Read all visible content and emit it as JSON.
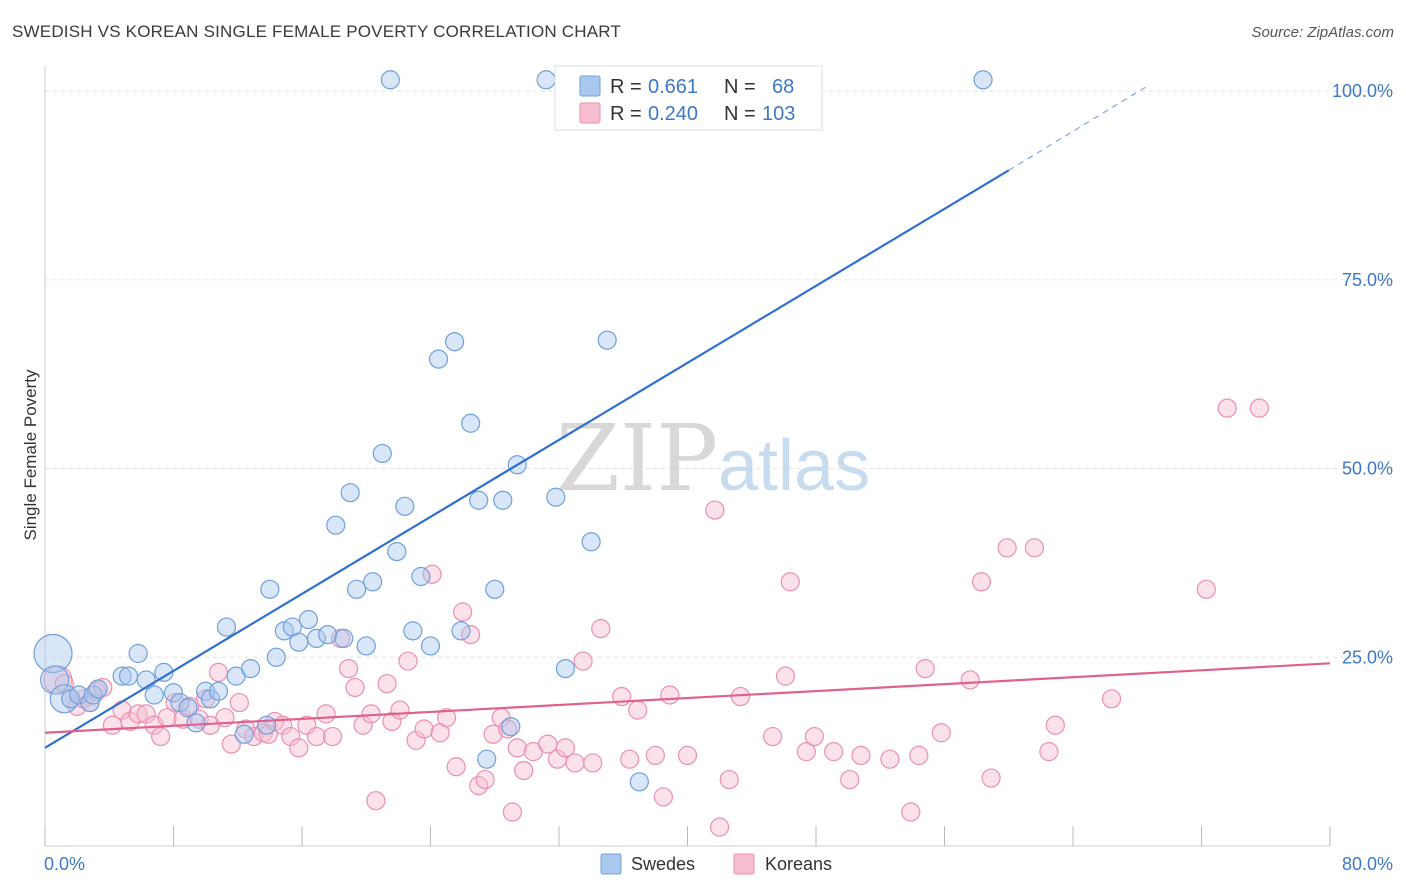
{
  "title": "SWEDISH VS KOREAN SINGLE FEMALE POVERTY CORRELATION CHART",
  "source": "Source: ZipAtlas.com",
  "watermark": {
    "zip": "ZIP",
    "atlas": "atlas"
  },
  "legend": {
    "r_label": "R =",
    "n_label": "N =",
    "swedes": {
      "r": "0.661",
      "n": "68"
    },
    "koreans": {
      "r": "0.240",
      "n": "103"
    }
  },
  "colors": {
    "swedes_fill": "#a8c8ee",
    "swedes_stroke": "#6fa0dc",
    "swedes_line": "#2f6fd0",
    "koreans_fill": "#f6bcd0",
    "koreans_stroke": "#ec8fb0",
    "koreans_line": "#e06090",
    "tick_text": "#3c78c8"
  },
  "chart_data": {
    "type": "scatter",
    "title": "SWEDISH VS KOREAN SINGLE FEMALE POVERTY CORRELATION CHART",
    "xlabel": "",
    "ylabel": "Single Female Poverty",
    "xlim": [
      0,
      80
    ],
    "ylim": [
      0,
      102
    ],
    "x_tick_labels": [
      "0.0%",
      "80.0%"
    ],
    "y_ticks": [
      25,
      50,
      75,
      100
    ],
    "y_tick_labels": [
      "25.0%",
      "50.0%",
      "75.0%",
      "100.0%"
    ],
    "grid": true,
    "legend_position": "top-center",
    "bottom_legend": [
      "Swedes",
      "Koreans"
    ],
    "series": [
      {
        "name": "Swedes",
        "r": 0.661,
        "n": 68,
        "trend": {
          "x0": 0,
          "y0": 13.0,
          "x1": 60,
          "y1": 89.5,
          "dashed_to_x": 68.5,
          "dashed_to_y": 100.5
        },
        "points": [
          [
            0.5,
            25.5,
            3
          ],
          [
            0.6,
            22,
            2
          ],
          [
            1.2,
            19.5,
            2
          ],
          [
            1.6,
            19.5,
            1
          ],
          [
            2.1,
            20,
            1
          ],
          [
            2.8,
            19,
            1
          ],
          [
            3.0,
            20,
            1
          ],
          [
            3.3,
            20.8,
            1
          ],
          [
            4.8,
            22.5,
            1
          ],
          [
            5.2,
            22.5,
            1
          ],
          [
            5.8,
            25.5,
            1
          ],
          [
            6.3,
            22,
            1
          ],
          [
            6.8,
            20,
            1
          ],
          [
            7.4,
            23,
            1
          ],
          [
            8.0,
            20.3,
            1
          ],
          [
            8.4,
            19,
            1
          ],
          [
            8.9,
            18.3,
            1
          ],
          [
            9.4,
            16.3,
            1
          ],
          [
            10.0,
            20.5,
            1
          ],
          [
            10.3,
            19.5,
            1
          ],
          [
            10.8,
            20.5,
            1
          ],
          [
            11.3,
            29,
            1
          ],
          [
            11.9,
            22.5,
            1
          ],
          [
            12.4,
            14.8,
            1
          ],
          [
            12.8,
            23.5,
            1
          ],
          [
            13.8,
            16,
            1
          ],
          [
            14.0,
            34,
            1
          ],
          [
            14.4,
            25,
            1
          ],
          [
            14.9,
            28.5,
            1
          ],
          [
            15.4,
            29,
            1
          ],
          [
            15.8,
            27,
            1
          ],
          [
            16.4,
            30,
            1
          ],
          [
            16.9,
            27.5,
            1
          ],
          [
            17.6,
            28,
            1
          ],
          [
            18.6,
            27.5,
            1
          ],
          [
            18.1,
            42.5,
            1
          ],
          [
            19.0,
            46.8,
            1
          ],
          [
            19.4,
            34,
            1
          ],
          [
            20.0,
            26.5,
            1
          ],
          [
            20.4,
            35,
            1
          ],
          [
            21.0,
            52,
            1
          ],
          [
            21.9,
            39,
            1
          ],
          [
            22.4,
            45,
            1
          ],
          [
            22.9,
            28.5,
            1
          ],
          [
            23.4,
            35.7,
            1
          ],
          [
            24.0,
            26.5,
            1
          ],
          [
            24.5,
            64.5,
            1
          ],
          [
            25.5,
            66.8,
            1
          ],
          [
            25.9,
            28.5,
            1
          ],
          [
            26.5,
            56,
            1
          ],
          [
            27.0,
            45.8,
            1
          ],
          [
            27.5,
            11.5,
            1
          ],
          [
            28.0,
            34,
            1
          ],
          [
            28.5,
            45.8,
            1
          ],
          [
            29.0,
            15.8,
            1
          ],
          [
            29.4,
            50.5,
            1
          ],
          [
            31.8,
            46.2,
            1
          ],
          [
            32.4,
            23.5,
            1
          ],
          [
            34.0,
            40.3,
            1
          ],
          [
            35.0,
            67,
            1
          ],
          [
            37.0,
            8.5,
            1
          ],
          [
            21.5,
            101.5,
            1
          ],
          [
            31.2,
            101.5,
            1
          ],
          [
            37.7,
            101.5,
            1
          ],
          [
            45.5,
            101.5,
            1
          ],
          [
            58.4,
            101.5,
            1
          ]
        ]
      },
      {
        "name": "Koreans",
        "r": 0.24,
        "n": 103,
        "trend": {
          "x0": 0,
          "y0": 15.0,
          "x1": 80,
          "y1": 24.2
        },
        "points": [
          [
            0.8,
            22,
            2
          ],
          [
            1.2,
            21.5,
            1
          ],
          [
            1.6,
            19.5,
            1
          ],
          [
            2.0,
            18.5,
            1
          ],
          [
            2.4,
            19.5,
            1
          ],
          [
            2.8,
            19,
            1
          ],
          [
            3.2,
            20.5,
            1
          ],
          [
            3.6,
            21,
            1
          ],
          [
            4.2,
            16,
            1
          ],
          [
            4.8,
            18,
            1
          ],
          [
            5.3,
            16.5,
            1
          ],
          [
            5.8,
            17.5,
            1
          ],
          [
            6.3,
            17.5,
            1
          ],
          [
            6.8,
            16,
            1
          ],
          [
            7.2,
            14.5,
            1
          ],
          [
            7.6,
            17,
            1
          ],
          [
            8.1,
            19,
            1
          ],
          [
            8.6,
            16.8,
            1
          ],
          [
            9.0,
            18.5,
            1
          ],
          [
            9.6,
            16.8,
            1
          ],
          [
            10.0,
            19.5,
            1
          ],
          [
            10.3,
            16,
            1
          ],
          [
            10.8,
            23,
            1
          ],
          [
            11.2,
            17,
            1
          ],
          [
            11.6,
            13.5,
            1
          ],
          [
            12.1,
            19,
            1
          ],
          [
            12.5,
            15.5,
            1
          ],
          [
            13.0,
            14.5,
            1
          ],
          [
            13.6,
            15,
            1
          ],
          [
            13.9,
            14.8,
            1
          ],
          [
            14.3,
            16.5,
            1
          ],
          [
            14.8,
            16,
            1
          ],
          [
            15.3,
            14.5,
            1
          ],
          [
            15.8,
            13,
            1
          ],
          [
            16.3,
            16,
            1
          ],
          [
            16.9,
            14.5,
            1
          ],
          [
            17.5,
            17.5,
            1
          ],
          [
            17.9,
            14.5,
            1
          ],
          [
            18.4,
            27.5,
            1
          ],
          [
            18.9,
            23.5,
            1
          ],
          [
            19.3,
            21,
            1
          ],
          [
            19.8,
            16,
            1
          ],
          [
            20.3,
            17.5,
            1
          ],
          [
            20.6,
            6,
            1
          ],
          [
            21.3,
            21.5,
            1
          ],
          [
            21.6,
            16.5,
            1
          ],
          [
            22.1,
            18,
            1
          ],
          [
            22.6,
            24.5,
            1
          ],
          [
            23.1,
            14,
            1
          ],
          [
            23.6,
            15.5,
            1
          ],
          [
            24.1,
            36,
            1
          ],
          [
            24.6,
            15,
            1
          ],
          [
            25.0,
            17,
            1
          ],
          [
            25.6,
            10.5,
            1
          ],
          [
            26.0,
            31,
            1
          ],
          [
            26.5,
            28,
            1
          ],
          [
            27.0,
            8,
            1
          ],
          [
            27.4,
            8.8,
            1
          ],
          [
            27.9,
            14.8,
            1
          ],
          [
            28.4,
            17,
            1
          ],
          [
            28.8,
            15.5,
            1
          ],
          [
            29.1,
            4.5,
            1
          ],
          [
            29.4,
            13,
            1
          ],
          [
            29.8,
            10,
            1
          ],
          [
            30.4,
            12.5,
            1
          ],
          [
            31.3,
            13.5,
            1
          ],
          [
            31.9,
            11.5,
            1
          ],
          [
            32.4,
            13,
            1
          ],
          [
            33.0,
            11,
            1
          ],
          [
            33.5,
            24.5,
            1
          ],
          [
            34.1,
            11,
            1
          ],
          [
            34.6,
            28.8,
            1
          ],
          [
            35.9,
            19.8,
            1
          ],
          [
            36.4,
            11.5,
            1
          ],
          [
            36.9,
            18,
            1
          ],
          [
            38.0,
            12,
            1
          ],
          [
            38.5,
            6.5,
            1
          ],
          [
            38.9,
            20,
            1
          ],
          [
            40.0,
            12,
            1
          ],
          [
            41.7,
            44.5,
            1
          ],
          [
            42.0,
            2.5,
            1
          ],
          [
            42.6,
            8.8,
            1
          ],
          [
            43.3,
            19.8,
            1
          ],
          [
            45.3,
            14.5,
            1
          ],
          [
            46.1,
            22.5,
            1
          ],
          [
            46.4,
            35,
            1
          ],
          [
            47.4,
            12.5,
            1
          ],
          [
            47.9,
            14.5,
            1
          ],
          [
            49.1,
            12.5,
            1
          ],
          [
            50.1,
            8.8,
            1
          ],
          [
            50.8,
            12,
            1
          ],
          [
            52.6,
            11.5,
            1
          ],
          [
            53.9,
            4.5,
            1
          ],
          [
            54.4,
            12,
            1
          ],
          [
            54.8,
            23.5,
            1
          ],
          [
            55.8,
            15,
            1
          ],
          [
            57.6,
            22,
            1
          ],
          [
            58.3,
            35,
            1
          ],
          [
            58.9,
            9,
            1
          ],
          [
            59.9,
            39.5,
            1
          ],
          [
            61.6,
            39.5,
            1
          ],
          [
            62.5,
            12.5,
            1
          ],
          [
            62.9,
            16,
            1
          ],
          [
            66.4,
            19.5,
            1
          ],
          [
            72.3,
            34,
            1
          ],
          [
            73.6,
            58,
            1
          ],
          [
            75.6,
            58,
            1
          ]
        ]
      }
    ]
  }
}
